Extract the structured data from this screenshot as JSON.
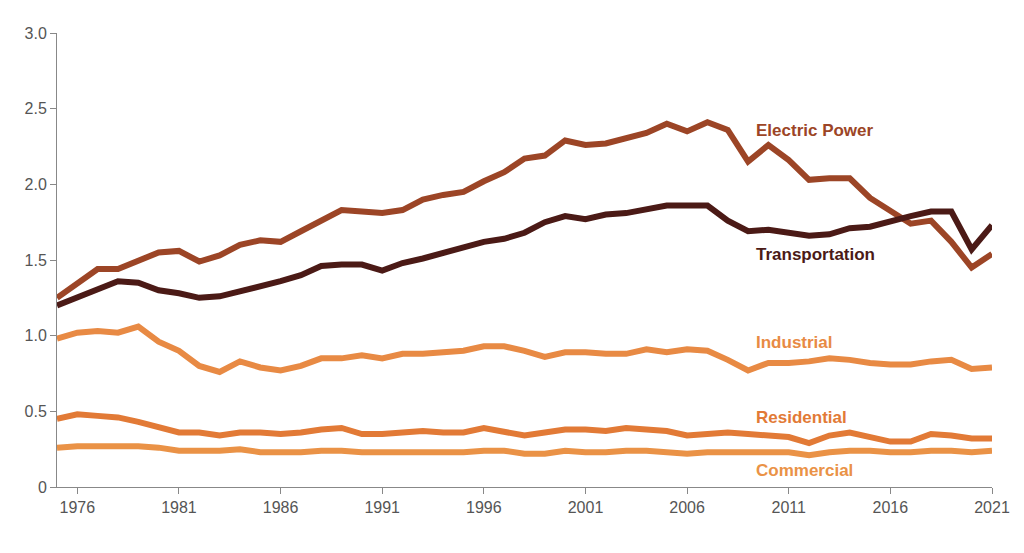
{
  "chart_data": {
    "type": "line",
    "x": [
      1975,
      1976,
      1977,
      1978,
      1979,
      1980,
      1981,
      1982,
      1983,
      1984,
      1985,
      1986,
      1987,
      1988,
      1989,
      1990,
      1991,
      1992,
      1993,
      1994,
      1995,
      1996,
      1997,
      1998,
      1999,
      2000,
      2001,
      2002,
      2003,
      2004,
      2005,
      2006,
      2007,
      2008,
      2009,
      2010,
      2011,
      2012,
      2013,
      2014,
      2015,
      2016,
      2017,
      2018,
      2019,
      2020,
      2021
    ],
    "series": [
      {
        "name": "Electric Power",
        "color": "#9c4526",
        "values": [
          1.25,
          1.35,
          1.44,
          1.44,
          1.5,
          1.55,
          1.56,
          1.49,
          1.53,
          1.6,
          1.63,
          1.62,
          1.69,
          1.76,
          1.83,
          1.82,
          1.81,
          1.83,
          1.9,
          1.93,
          1.95,
          2.02,
          2.08,
          2.17,
          2.19,
          2.29,
          2.26,
          2.27,
          2.3,
          2.34,
          2.4,
          2.35,
          2.41,
          2.36,
          2.15,
          2.26,
          2.16,
          2.03,
          2.04,
          2.04,
          1.91,
          1.82,
          1.74,
          1.76,
          1.62,
          1.45,
          1.54
        ]
      },
      {
        "name": "Transportation",
        "color": "#4b1a16",
        "values": [
          1.2,
          1.25,
          1.3,
          1.36,
          1.35,
          1.3,
          1.28,
          1.25,
          1.26,
          1.29,
          1.32,
          1.36,
          1.4,
          1.46,
          1.47,
          1.47,
          1.43,
          1.48,
          1.51,
          1.55,
          1.58,
          1.62,
          1.64,
          1.68,
          1.75,
          1.79,
          1.77,
          1.8,
          1.81,
          1.84,
          1.86,
          1.86,
          1.86,
          1.76,
          1.69,
          1.7,
          1.68,
          1.66,
          1.67,
          1.71,
          1.72,
          1.76,
          1.79,
          1.82,
          1.82,
          1.57,
          1.73
        ]
      },
      {
        "name": "Industrial",
        "color": "#e88a44",
        "values": [
          0.98,
          1.02,
          1.03,
          1.02,
          1.06,
          0.96,
          0.9,
          0.8,
          0.76,
          0.83,
          0.79,
          0.77,
          0.8,
          0.85,
          0.85,
          0.87,
          0.85,
          0.88,
          0.88,
          0.89,
          0.9,
          0.93,
          0.93,
          0.9,
          0.86,
          0.89,
          0.89,
          0.88,
          0.88,
          0.91,
          0.89,
          0.91,
          0.9,
          0.84,
          0.77,
          0.82,
          0.82,
          0.83,
          0.85,
          0.84,
          0.82,
          0.81,
          0.81,
          0.83,
          0.84,
          0.78,
          0.79
        ]
      },
      {
        "name": "Residential",
        "color": "#e27a36",
        "values": [
          0.45,
          0.48,
          0.47,
          0.46,
          0.43,
          0.39,
          0.36,
          0.36,
          0.34,
          0.36,
          0.36,
          0.35,
          0.36,
          0.38,
          0.39,
          0.35,
          0.35,
          0.36,
          0.37,
          0.36,
          0.36,
          0.39,
          0.37,
          0.34,
          0.36,
          0.38,
          0.38,
          0.37,
          0.39,
          0.38,
          0.37,
          0.34,
          0.35,
          0.36,
          0.35,
          0.34,
          0.33,
          0.29,
          0.34,
          0.36,
          0.33,
          0.3,
          0.3,
          0.35,
          0.34,
          0.32,
          0.32
        ]
      },
      {
        "name": "Commercial",
        "color": "#ea9246",
        "values": [
          0.26,
          0.27,
          0.27,
          0.27,
          0.27,
          0.26,
          0.24,
          0.24,
          0.24,
          0.25,
          0.23,
          0.23,
          0.23,
          0.24,
          0.24,
          0.23,
          0.23,
          0.23,
          0.23,
          0.23,
          0.23,
          0.24,
          0.24,
          0.22,
          0.22,
          0.24,
          0.23,
          0.23,
          0.24,
          0.24,
          0.23,
          0.22,
          0.23,
          0.23,
          0.23,
          0.23,
          0.23,
          0.21,
          0.23,
          0.24,
          0.24,
          0.23,
          0.23,
          0.24,
          0.24,
          0.23,
          0.24
        ]
      }
    ],
    "xlim": [
      1975,
      2021
    ],
    "xticks": [
      1976,
      1981,
      1986,
      1991,
      1996,
      2001,
      2006,
      2011,
      2016,
      2021
    ],
    "ylim": [
      0,
      3.0
    ],
    "yticks": [
      0,
      0.5,
      {
        "value": 1.0,
        "label": "1.0"
      },
      1.5,
      {
        "value": 2.0,
        "label": "2.0"
      },
      2.5,
      {
        "value": 3.0,
        "label": "3.0"
      }
    ],
    "grid": false
  }
}
